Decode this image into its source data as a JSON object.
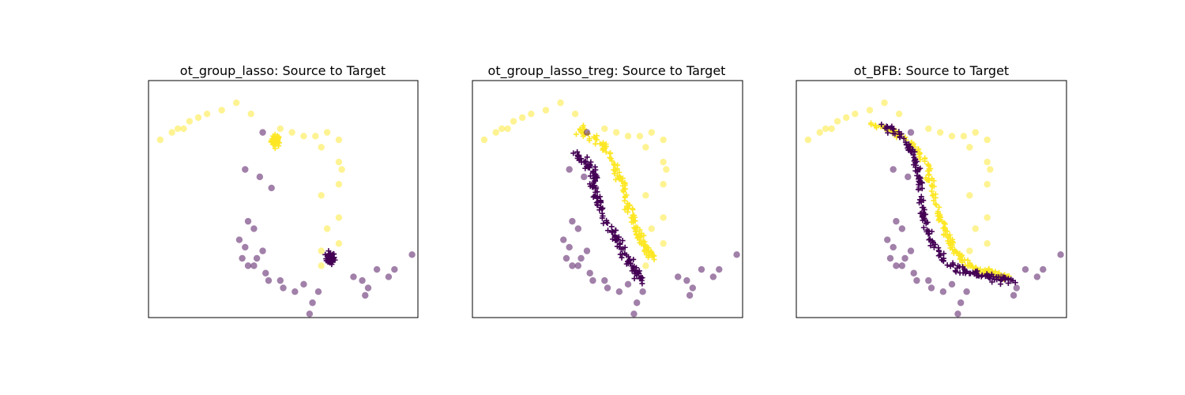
{
  "colors": {
    "class0": "#440154",
    "class1": "#fde725",
    "axes_edge": "#000000"
  },
  "chart_data": [
    {
      "type": "scatter",
      "title": "ot_group_lasso: Source to Target",
      "xlabel": "",
      "ylabel": "",
      "ticks": "none",
      "grid": false,
      "xlim": [
        -2.6,
        6.6
      ],
      "ylim": [
        -3.2,
        3.2
      ],
      "series": [
        {
          "role": "target",
          "marker": "circle",
          "alpha": 0.5,
          "class": 1,
          "points": [
            [
              -2.2,
              1.6
            ],
            [
              -1.8,
              1.8
            ],
            [
              -1.6,
              1.9
            ],
            [
              -1.4,
              1.9
            ],
            [
              -1.2,
              2.1
            ],
            [
              -0.9,
              2.2
            ],
            [
              -0.6,
              2.3
            ],
            [
              -0.1,
              2.4
            ],
            [
              0.4,
              2.6
            ],
            [
              0.9,
              2.3
            ],
            [
              1.9,
              1.9
            ],
            [
              2.3,
              1.8
            ],
            [
              2.7,
              1.7
            ],
            [
              3.1,
              1.7
            ],
            [
              3.5,
              1.8
            ],
            [
              3.3,
              1.4
            ],
            [
              3.9,
              1.6
            ],
            [
              3.9,
              1.0
            ],
            [
              4.0,
              0.8
            ],
            [
              3.3,
              0.1
            ],
            [
              3.9,
              0.4
            ],
            [
              3.9,
              -0.5
            ],
            [
              3.5,
              -0.8
            ],
            [
              3.9,
              -1.2
            ],
            [
              3.3,
              -1.4
            ],
            [
              3.3,
              -1.8
            ],
            [
              1.7,
              1.6
            ],
            [
              1.8,
              1.6
            ],
            [
              1.8,
              1.55
            ],
            [
              1.75,
              1.58
            ]
          ]
        },
        {
          "role": "target",
          "marker": "circle",
          "alpha": 0.5,
          "class": 0,
          "points": [
            [
              1.3,
              1.8
            ],
            [
              1.6,
              0.3
            ],
            [
              0.7,
              0.8
            ],
            [
              1.2,
              0.6
            ],
            [
              0.8,
              -0.6
            ],
            [
              1.0,
              -0.8
            ],
            [
              0.5,
              -1.1
            ],
            [
              0.7,
              -1.3
            ],
            [
              1.3,
              -1.4
            ],
            [
              1.1,
              -1.6
            ],
            [
              1.0,
              -1.8
            ],
            [
              0.8,
              -1.8
            ],
            [
              0.6,
              -1.6
            ],
            [
              1.4,
              -2.0
            ],
            [
              1.5,
              -2.2
            ],
            [
              1.9,
              -2.2
            ],
            [
              2.0,
              -2.4
            ],
            [
              2.4,
              -2.5
            ],
            [
              3.2,
              -2.5
            ],
            [
              3.0,
              -2.8
            ],
            [
              2.7,
              -2.3
            ],
            [
              4.4,
              -2.1
            ],
            [
              4.7,
              -2.2
            ],
            [
              4.9,
              -2.4
            ],
            [
              5.2,
              -1.9
            ],
            [
              5.6,
              -2.1
            ],
            [
              5.8,
              -1.9
            ],
            [
              6.4,
              -1.5
            ],
            [
              4.8,
              -2.6
            ],
            [
              2.9,
              -3.1
            ]
          ]
        },
        {
          "role": "transported-source",
          "marker": "plus",
          "class": 1,
          "cluster": [
            1.75,
            1.58
          ],
          "spread": 0.08,
          "n": 40
        },
        {
          "role": "transported-source",
          "marker": "plus",
          "class": 0,
          "cluster": [
            3.6,
            -1.6
          ],
          "spread": 0.08,
          "n": 40
        }
      ]
    },
    {
      "type": "scatter",
      "title": "ot_group_lasso_treg: Source to Target",
      "xlabel": "",
      "ylabel": "",
      "ticks": "none",
      "grid": false,
      "xlim": [
        -2.6,
        6.6
      ],
      "ylim": [
        -3.2,
        3.2
      ],
      "series": [
        {
          "role": "target",
          "marker": "circle",
          "alpha": 0.5,
          "class": 1,
          "points": [
            [
              -2.2,
              1.6
            ],
            [
              -1.8,
              1.8
            ],
            [
              -1.6,
              1.9
            ],
            [
              -1.4,
              1.9
            ],
            [
              -1.2,
              2.1
            ],
            [
              -0.9,
              2.2
            ],
            [
              -0.6,
              2.3
            ],
            [
              -0.1,
              2.4
            ],
            [
              0.4,
              2.6
            ],
            [
              0.9,
              2.3
            ],
            [
              1.9,
              1.9
            ],
            [
              2.3,
              1.8
            ],
            [
              2.7,
              1.7
            ],
            [
              3.1,
              1.7
            ],
            [
              3.5,
              1.8
            ],
            [
              3.3,
              1.4
            ],
            [
              3.9,
              1.6
            ],
            [
              3.9,
              1.0
            ],
            [
              4.0,
              0.8
            ],
            [
              3.3,
              0.1
            ],
            [
              3.9,
              0.4
            ],
            [
              3.9,
              -0.5
            ],
            [
              3.5,
              -0.8
            ],
            [
              3.9,
              -1.2
            ],
            [
              3.3,
              -1.4
            ],
            [
              3.3,
              -1.8
            ]
          ]
        },
        {
          "role": "target",
          "marker": "circle",
          "alpha": 0.5,
          "class": 0,
          "points": [
            [
              1.3,
              1.8
            ],
            [
              1.6,
              0.3
            ],
            [
              0.7,
              0.8
            ],
            [
              1.2,
              0.6
            ],
            [
              0.8,
              -0.6
            ],
            [
              1.0,
              -0.8
            ],
            [
              0.5,
              -1.1
            ],
            [
              0.7,
              -1.3
            ],
            [
              1.3,
              -1.4
            ],
            [
              1.1,
              -1.6
            ],
            [
              1.0,
              -1.8
            ],
            [
              0.8,
              -1.8
            ],
            [
              0.6,
              -1.6
            ],
            [
              1.4,
              -2.0
            ],
            [
              1.5,
              -2.2
            ],
            [
              1.9,
              -2.2
            ],
            [
              2.0,
              -2.4
            ],
            [
              2.4,
              -2.5
            ],
            [
              3.2,
              -2.5
            ],
            [
              3.0,
              -2.8
            ],
            [
              2.7,
              -2.3
            ],
            [
              4.4,
              -2.1
            ],
            [
              4.7,
              -2.2
            ],
            [
              4.9,
              -2.4
            ],
            [
              5.2,
              -1.9
            ],
            [
              5.6,
              -2.1
            ],
            [
              5.8,
              -1.9
            ],
            [
              6.4,
              -1.5
            ],
            [
              4.8,
              -2.6
            ],
            [
              2.9,
              -3.1
            ]
          ]
        },
        {
          "role": "transported-source",
          "marker": "plus",
          "class": 1,
          "curve": [
            [
              1.0,
              1.9
            ],
            [
              1.5,
              1.7
            ],
            [
              2.0,
              1.3
            ],
            [
              2.3,
              0.8
            ],
            [
              2.6,
              0.2
            ],
            [
              2.8,
              -0.4
            ],
            [
              3.0,
              -0.9
            ],
            [
              3.3,
              -1.3
            ],
            [
              3.6,
              -1.6
            ]
          ],
          "spread": 0.06,
          "n": 140
        },
        {
          "role": "transported-source",
          "marker": "plus",
          "class": 0,
          "curve": [
            [
              0.9,
              1.2
            ],
            [
              1.3,
              1.0
            ],
            [
              1.6,
              0.6
            ],
            [
              1.5,
              0.3
            ],
            [
              1.8,
              -0.3
            ],
            [
              2.2,
              -0.9
            ],
            [
              2.5,
              -1.4
            ],
            [
              2.8,
              -1.8
            ],
            [
              3.2,
              -2.2
            ]
          ],
          "spread": 0.06,
          "n": 140
        }
      ]
    },
    {
      "type": "scatter",
      "title": "ot_BFB: Source to Target",
      "xlabel": "",
      "ylabel": "",
      "ticks": "none",
      "grid": false,
      "xlim": [
        -2.6,
        6.6
      ],
      "ylim": [
        -3.2,
        3.2
      ],
      "series": [
        {
          "role": "target",
          "marker": "circle",
          "alpha": 0.5,
          "class": 1,
          "points": [
            [
              -2.2,
              1.6
            ],
            [
              -1.8,
              1.8
            ],
            [
              -1.6,
              1.9
            ],
            [
              -1.4,
              1.9
            ],
            [
              -1.2,
              2.1
            ],
            [
              -0.9,
              2.2
            ],
            [
              -0.6,
              2.3
            ],
            [
              -0.1,
              2.4
            ],
            [
              0.4,
              2.6
            ],
            [
              0.9,
              2.3
            ],
            [
              1.9,
              1.9
            ],
            [
              2.3,
              1.8
            ],
            [
              2.7,
              1.7
            ],
            [
              3.1,
              1.7
            ],
            [
              3.5,
              1.8
            ],
            [
              3.3,
              1.4
            ],
            [
              3.9,
              1.6
            ],
            [
              3.9,
              1.0
            ],
            [
              4.0,
              0.8
            ],
            [
              3.3,
              0.1
            ],
            [
              3.9,
              0.4
            ],
            [
              3.9,
              -0.5
            ],
            [
              3.5,
              -0.8
            ],
            [
              3.9,
              -1.2
            ],
            [
              3.3,
              -1.4
            ],
            [
              3.3,
              -1.8
            ]
          ]
        },
        {
          "role": "target",
          "marker": "circle",
          "alpha": 0.5,
          "class": 0,
          "points": [
            [
              1.3,
              1.8
            ],
            [
              1.6,
              0.3
            ],
            [
              0.7,
              0.8
            ],
            [
              1.2,
              0.6
            ],
            [
              0.8,
              -0.6
            ],
            [
              1.0,
              -0.8
            ],
            [
              0.5,
              -1.1
            ],
            [
              0.7,
              -1.3
            ],
            [
              1.3,
              -1.4
            ],
            [
              1.1,
              -1.6
            ],
            [
              1.0,
              -1.8
            ],
            [
              0.8,
              -1.8
            ],
            [
              0.6,
              -1.6
            ],
            [
              1.4,
              -2.0
            ],
            [
              1.5,
              -2.2
            ],
            [
              1.9,
              -2.2
            ],
            [
              2.0,
              -2.4
            ],
            [
              2.4,
              -2.5
            ],
            [
              3.2,
              -2.5
            ],
            [
              3.0,
              -2.8
            ],
            [
              2.7,
              -2.3
            ],
            [
              4.4,
              -2.1
            ],
            [
              4.7,
              -2.2
            ],
            [
              4.9,
              -2.4
            ],
            [
              5.2,
              -1.9
            ],
            [
              5.6,
              -2.1
            ],
            [
              5.8,
              -1.9
            ],
            [
              6.4,
              -1.5
            ],
            [
              4.8,
              -2.6
            ],
            [
              2.9,
              -3.1
            ]
          ]
        },
        {
          "role": "transported-source",
          "marker": "plus",
          "class": 1,
          "curve": [
            [
              0.0,
              2.0
            ],
            [
              0.8,
              1.8
            ],
            [
              1.5,
              1.4
            ],
            [
              1.9,
              0.8
            ],
            [
              2.1,
              0.0
            ],
            [
              2.4,
              -0.8
            ],
            [
              2.8,
              -1.4
            ],
            [
              3.3,
              -1.8
            ],
            [
              4.0,
              -2.0
            ],
            [
              4.6,
              -2.1
            ]
          ],
          "spread": 0.05,
          "n": 180
        },
        {
          "role": "transported-source",
          "marker": "plus",
          "class": 0,
          "curve": [
            [
              0.3,
              2.0
            ],
            [
              1.0,
              1.7
            ],
            [
              1.4,
              1.2
            ],
            [
              1.6,
              0.5
            ],
            [
              1.7,
              -0.4
            ],
            [
              2.0,
              -1.1
            ],
            [
              2.4,
              -1.6
            ],
            [
              3.0,
              -1.9
            ],
            [
              3.8,
              -2.1
            ],
            [
              4.8,
              -2.2
            ]
          ],
          "spread": 0.05,
          "n": 180
        }
      ]
    }
  ]
}
